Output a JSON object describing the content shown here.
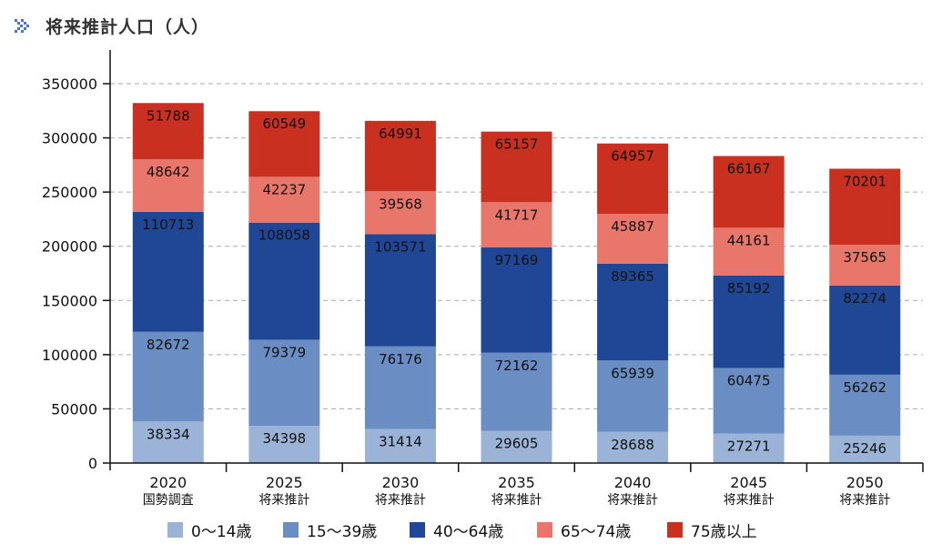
{
  "header": {
    "title": "将来推計人口（人）",
    "icon": "double-chevron-right-icon"
  },
  "chart_data": {
    "type": "bar",
    "stacked": true,
    "title": "将来推計人口（人）",
    "xlabel": "",
    "ylabel": "",
    "ylim": [
      0,
      350000
    ],
    "yticks": [
      0,
      50000,
      100000,
      150000,
      200000,
      250000,
      300000,
      350000
    ],
    "grid": true,
    "legend_position": "bottom",
    "categories": [
      "2020",
      "2025",
      "2030",
      "2035",
      "2040",
      "2045",
      "2050"
    ],
    "category_sublabels": [
      "国勢調査",
      "将来推計",
      "将来推計",
      "将来推計",
      "将来推計",
      "将来推計",
      "将来推計"
    ],
    "series": [
      {
        "name": "0〜14歳",
        "color": "#9ab3d6",
        "values": [
          38334,
          34398,
          31414,
          29605,
          28688,
          27271,
          25246
        ]
      },
      {
        "name": "15〜39歳",
        "color": "#6a8ec3",
        "values": [
          82672,
          79379,
          76176,
          72162,
          65939,
          60475,
          56262
        ]
      },
      {
        "name": "40〜64歳",
        "color": "#1f4796",
        "values": [
          110713,
          108058,
          103571,
          97169,
          89365,
          85192,
          82274
        ]
      },
      {
        "name": "65〜74歳",
        "color": "#e8766a",
        "values": [
          48642,
          42237,
          39568,
          41717,
          45887,
          44161,
          37565
        ]
      },
      {
        "name": "75歳以上",
        "color": "#c9301f",
        "values": [
          51788,
          60549,
          64991,
          65157,
          64957,
          66167,
          70201
        ]
      }
    ]
  }
}
